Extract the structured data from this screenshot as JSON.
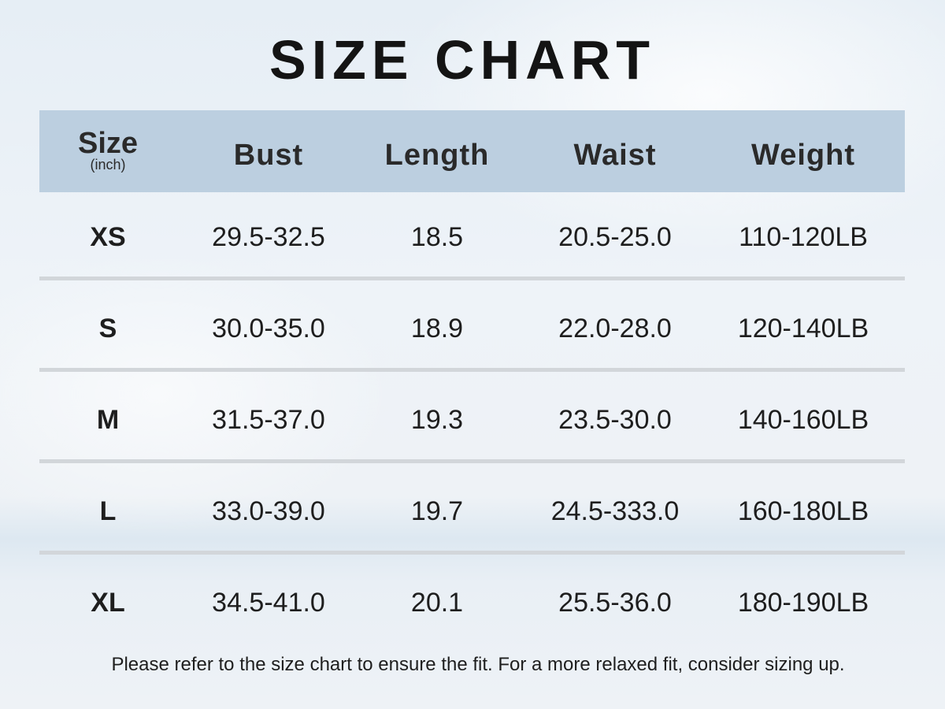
{
  "title": "SIZE CHART",
  "header": {
    "size": "Size",
    "size_unit": "(inch)",
    "bust": "Bust",
    "length": "Length",
    "waist": "Waist",
    "weight": "Weight"
  },
  "rows": [
    {
      "size": "XS",
      "bust": "29.5-32.5",
      "length": "18.5",
      "waist": "20.5-25.0",
      "weight": "110-120LB"
    },
    {
      "size": "S",
      "bust": "30.0-35.0",
      "length": "18.9",
      "waist": "22.0-28.0",
      "weight": "120-140LB"
    },
    {
      "size": "M",
      "bust": "31.5-37.0",
      "length": "19.3",
      "waist": "23.5-30.0",
      "weight": "140-160LB"
    },
    {
      "size": "L",
      "bust": "33.0-39.0",
      "length": "19.7",
      "waist": "24.5-333.0",
      "weight": "160-180LB"
    },
    {
      "size": "XL",
      "bust": "34.5-41.0",
      "length": "20.1",
      "waist": "25.5-36.0",
      "weight": "180-190LB"
    }
  ],
  "note": "Please refer to the size chart to ensure the fit. For a more relaxed fit, consider sizing up.",
  "colors": {
    "header_band": "#bccfe0",
    "separator": "#d2d6da",
    "text": "#1e1e1e"
  }
}
